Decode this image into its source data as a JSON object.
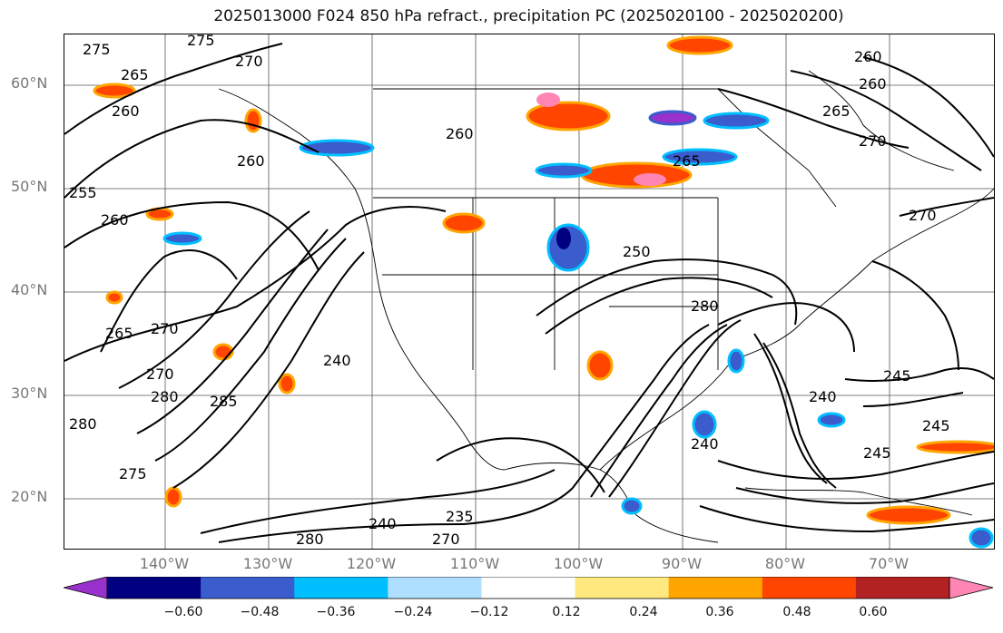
{
  "title": "2025013000 F024 850 hPa refract., precipitation PC (2025020100 - 2025020200)",
  "latitude_labels": [
    "60°N",
    "50°N",
    "40°N",
    "30°N",
    "20°N"
  ],
  "longitude_labels": [
    "140°W",
    "130°W",
    "120°W",
    "110°W",
    "100°W",
    "90°W",
    "80°W",
    "70°W"
  ],
  "contour_labels": [
    "275",
    "275",
    "270",
    "265",
    "260",
    "260",
    "260",
    "255",
    "260",
    "265",
    "270",
    "270",
    "280",
    "285",
    "240",
    "250",
    "280",
    "240",
    "245",
    "240",
    "245",
    "245",
    "240",
    "235",
    "270",
    "280",
    "275",
    "280",
    "265",
    "260",
    "270",
    "260",
    "265",
    "270"
  ],
  "colorbar": {
    "colors": [
      "#9932cc",
      "#000080",
      "#3a5ccc",
      "#00bfff",
      "#afdfff",
      "#ffffff",
      "#ffe97f",
      "#ffa500",
      "#ff4500",
      "#b22222",
      "#ff85b4"
    ],
    "tick_labels": [
      "−0.60",
      "−0.48",
      "−0.36",
      "−0.24",
      "−0.12",
      "0.12",
      "0.24",
      "0.36",
      "0.48",
      "0.60"
    ]
  }
}
